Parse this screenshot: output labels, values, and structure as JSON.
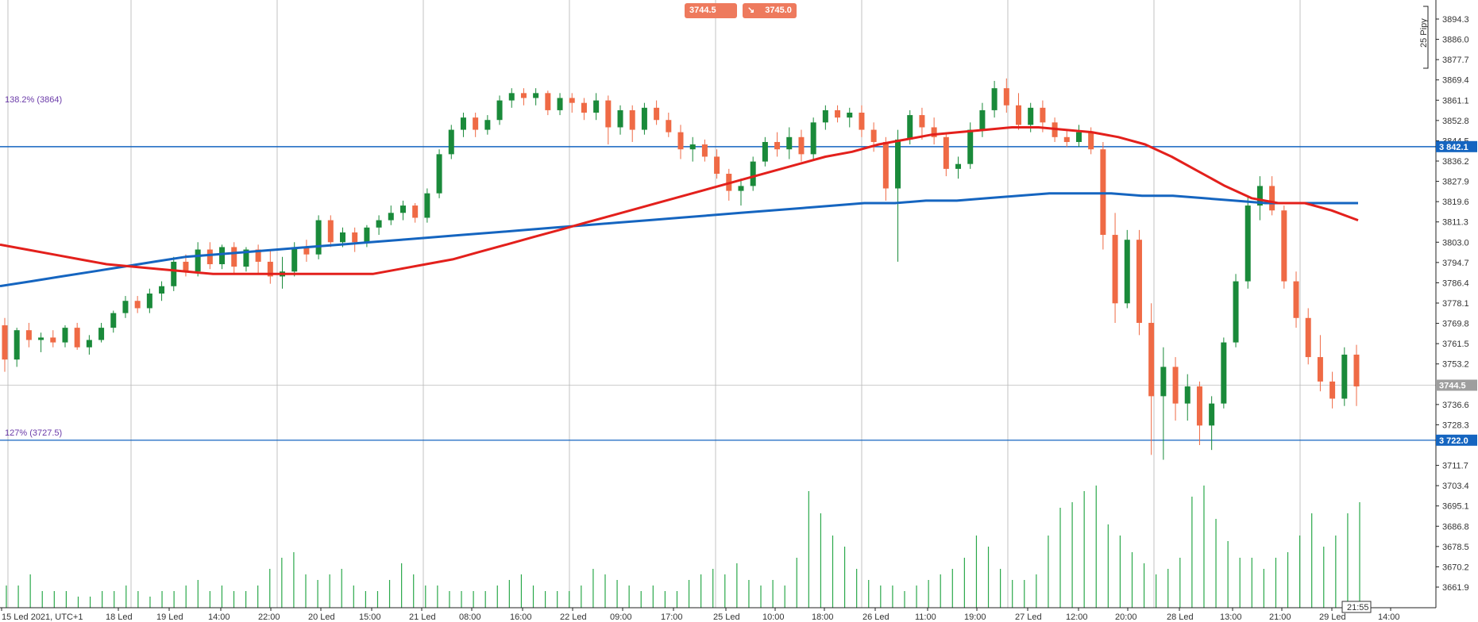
{
  "quotes": {
    "bid": "3744.5",
    "ask": "3745.0",
    "bid_arrow": "↘",
    "ask_arrow": "↘"
  },
  "volume_legend": "25 Pipy",
  "fib_labels": {
    "upper": "138.2% (3864)",
    "lower": "127% (3727.5)"
  },
  "hlines": {
    "upper": "3 842.1",
    "lower": "3 722.0",
    "current": "3744.5"
  },
  "time_badge": "21:55",
  "colors": {
    "bull": "#1a8a3a",
    "bear": "#ef6a45",
    "ma_fast": "#e3201c",
    "ma_slow": "#1565c0",
    "hline": "#1565c0",
    "volume": "#2aa84a",
    "grid": "#9a9a9a",
    "fib_text": "#6a3aa8"
  },
  "chart_data": {
    "type": "candlestick",
    "title": "",
    "xlabel": "",
    "ylabel": "",
    "ylim": [
      3657,
      3898
    ],
    "y_ticks": [
      "3894.3",
      "3886.0",
      "3877.7",
      "3869.4",
      "3861.1",
      "3852.8",
      "3844.5",
      "3836.2",
      "3827.9",
      "3819.6",
      "3811.3",
      "3803.0",
      "3794.7",
      "3786.4",
      "3778.1",
      "3769.8",
      "3761.5",
      "3753.2",
      "3744.5",
      "3736.6",
      "3728.3",
      "3722.0",
      "3711.7",
      "3703.4",
      "3695.1",
      "3686.8",
      "3678.5",
      "3670.2",
      "3661.9"
    ],
    "x_ticks": [
      "15 Led 2021, UTC+1",
      "18 Led",
      "19 Led",
      "14:00",
      "22:00",
      "20 Led",
      "15:00",
      "21 Led",
      "08:00",
      "16:00",
      "22 Led",
      "09:00",
      "17:00",
      "25 Led",
      "10:00",
      "18:00",
      "26 Led",
      "11:00",
      "19:00",
      "27 Led",
      "12:00",
      "20:00",
      "28 Led",
      "13:00",
      "21:00",
      "29 Led",
      "14:00"
    ],
    "horizontal_lines": [
      3842.1,
      3722.0
    ],
    "fib_levels": [
      {
        "label": "138.2%",
        "value": 3864
      },
      {
        "label": "127%",
        "value": 3727.5
      }
    ],
    "current_price": 3744.5,
    "series": [
      {
        "name": "",
        "type": "candles",
        "ohlc": [
          [
            3769,
            3772,
            3750,
            3755
          ],
          [
            3755,
            3768,
            3752,
            3767
          ],
          [
            3767,
            3770,
            3760,
            3763
          ],
          [
            3763,
            3766,
            3758,
            3764
          ],
          [
            3764,
            3767,
            3760,
            3762
          ],
          [
            3762,
            3769,
            3760,
            3768
          ],
          [
            3768,
            3770,
            3759,
            3760
          ],
          [
            3760,
            3765,
            3757,
            3763
          ],
          [
            3763,
            3770,
            3762,
            3768
          ],
          [
            3768,
            3775,
            3766,
            3774
          ],
          [
            3774,
            3781,
            3772,
            3779
          ],
          [
            3779,
            3781,
            3774,
            3776
          ],
          [
            3776,
            3784,
            3774,
            3782
          ],
          [
            3782,
            3787,
            3779,
            3785
          ],
          [
            3785,
            3797,
            3783,
            3795
          ],
          [
            3795,
            3798,
            3789,
            3791
          ],
          [
            3791,
            3803,
            3789,
            3800
          ],
          [
            3800,
            3803,
            3792,
            3794
          ],
          [
            3794,
            3802,
            3792,
            3801
          ],
          [
            3801,
            3803,
            3790,
            3793
          ],
          [
            3793,
            3801,
            3791,
            3800
          ],
          [
            3800,
            3802,
            3790,
            3795
          ],
          [
            3795,
            3800,
            3786,
            3789
          ],
          [
            3789,
            3797,
            3784,
            3791
          ],
          [
            3791,
            3803,
            3789,
            3801
          ],
          [
            3801,
            3804,
            3795,
            3798
          ],
          [
            3798,
            3814,
            3796,
            3812
          ],
          [
            3812,
            3814,
            3801,
            3803
          ],
          [
            3803,
            3809,
            3801,
            3807
          ],
          [
            3807,
            3809,
            3799,
            3803
          ],
          [
            3803,
            3810,
            3801,
            3809
          ],
          [
            3809,
            3814,
            3806,
            3812
          ],
          [
            3812,
            3818,
            3810,
            3815
          ],
          [
            3815,
            3820,
            3812,
            3818
          ],
          [
            3818,
            3819,
            3811,
            3813
          ],
          [
            3813,
            3825,
            3811,
            3823
          ],
          [
            3823,
            3841,
            3821,
            3839
          ],
          [
            3839,
            3851,
            3837,
            3849
          ],
          [
            3849,
            3856,
            3846,
            3854
          ],
          [
            3854,
            3856,
            3846,
            3849
          ],
          [
            3849,
            3855,
            3847,
            3853
          ],
          [
            3853,
            3863,
            3851,
            3861
          ],
          [
            3861,
            3866,
            3858,
            3864
          ],
          [
            3864,
            3866,
            3859,
            3862
          ],
          [
            3862,
            3866,
            3859,
            3864
          ],
          [
            3864,
            3865,
            3855,
            3857
          ],
          [
            3857,
            3864,
            3855,
            3862
          ],
          [
            3862,
            3864,
            3856,
            3860
          ],
          [
            3860,
            3862,
            3853,
            3856
          ],
          [
            3856,
            3864,
            3853,
            3861
          ],
          [
            3861,
            3863,
            3843,
            3850
          ],
          [
            3850,
            3859,
            3847,
            3857
          ],
          [
            3857,
            3859,
            3844,
            3849
          ],
          [
            3849,
            3860,
            3847,
            3858
          ],
          [
            3858,
            3861,
            3851,
            3853
          ],
          [
            3853,
            3856,
            3846,
            3848
          ],
          [
            3848,
            3851,
            3837,
            3841
          ],
          [
            3841,
            3846,
            3836,
            3843
          ],
          [
            3843,
            3845,
            3836,
            3838
          ],
          [
            3838,
            3841,
            3829,
            3831
          ],
          [
            3831,
            3833,
            3820,
            3824
          ],
          [
            3824,
            3829,
            3818,
            3826
          ],
          [
            3826,
            3838,
            3824,
            3836
          ],
          [
            3836,
            3846,
            3834,
            3844
          ],
          [
            3844,
            3848,
            3838,
            3841
          ],
          [
            3841,
            3850,
            3837,
            3846
          ],
          [
            3846,
            3849,
            3836,
            3839
          ],
          [
            3839,
            3854,
            3837,
            3852
          ],
          [
            3852,
            3859,
            3849,
            3857
          ],
          [
            3857,
            3859,
            3852,
            3854
          ],
          [
            3854,
            3858,
            3850,
            3856
          ],
          [
            3856,
            3859,
            3846,
            3849
          ],
          [
            3849,
            3852,
            3840,
            3844
          ],
          [
            3844,
            3846,
            3820,
            3825
          ],
          [
            3825,
            3849,
            3795,
            3845
          ],
          [
            3845,
            3857,
            3843,
            3855
          ],
          [
            3855,
            3858,
            3845,
            3850
          ],
          [
            3850,
            3854,
            3843,
            3846
          ],
          [
            3846,
            3848,
            3830,
            3833
          ],
          [
            3833,
            3838,
            3829,
            3835
          ],
          [
            3835,
            3852,
            3833,
            3849
          ],
          [
            3849,
            3860,
            3846,
            3857
          ],
          [
            3857,
            3869,
            3854,
            3866
          ],
          [
            3866,
            3870,
            3856,
            3859
          ],
          [
            3859,
            3864,
            3849,
            3851
          ],
          [
            3851,
            3860,
            3848,
            3858
          ],
          [
            3858,
            3861,
            3848,
            3852
          ],
          [
            3852,
            3854,
            3844,
            3846
          ],
          [
            3846,
            3849,
            3842,
            3844
          ],
          [
            3844,
            3851,
            3842,
            3848
          ],
          [
            3848,
            3850,
            3839,
            3841
          ],
          [
            3841,
            3844,
            3800,
            3806
          ],
          [
            3806,
            3815,
            3770,
            3778
          ],
          [
            3778,
            3808,
            3776,
            3804
          ],
          [
            3804,
            3808,
            3765,
            3770
          ],
          [
            3770,
            3778,
            3716,
            3740
          ],
          [
            3740,
            3760,
            3714,
            3752
          ],
          [
            3752,
            3756,
            3730,
            3737
          ],
          [
            3737,
            3749,
            3730,
            3744
          ],
          [
            3744,
            3746,
            3720,
            3728
          ],
          [
            3728,
            3740,
            3718,
            3737
          ],
          [
            3737,
            3764,
            3735,
            3762
          ],
          [
            3762,
            3790,
            3760,
            3787
          ],
          [
            3787,
            3822,
            3784,
            3818
          ],
          [
            3818,
            3830,
            3812,
            3826
          ],
          [
            3826,
            3830,
            3814,
            3816
          ],
          [
            3816,
            3818,
            3784,
            3787
          ],
          [
            3787,
            3791,
            3768,
            3772
          ],
          [
            3772,
            3776,
            3753,
            3756
          ],
          [
            3756,
            3765,
            3742,
            3746
          ],
          [
            3746,
            3750,
            3735,
            3739
          ],
          [
            3739,
            3760,
            3736,
            3757
          ],
          [
            3757,
            3761,
            3736,
            3744
          ]
        ]
      },
      {
        "name": "",
        "type": "line",
        "role": "fast-ma",
        "values": [
          3802,
          3800,
          3798,
          3796,
          3794,
          3793,
          3792,
          3791,
          3790,
          3790,
          3790,
          3790,
          3790,
          3790,
          3790,
          3792,
          3794,
          3796,
          3799,
          3802,
          3805,
          3808,
          3811,
          3814,
          3817,
          3820,
          3823,
          3826,
          3829,
          3832,
          3835,
          3838,
          3840,
          3843,
          3845,
          3847,
          3848,
          3849,
          3850,
          3850,
          3849,
          3848,
          3846,
          3843,
          3838,
          3832,
          3826,
          3821,
          3819,
          3819,
          3816,
          3812
        ]
      },
      {
        "name": "",
        "type": "line",
        "role": "slow-ma",
        "values": [
          3785,
          3787,
          3789,
          3791,
          3793,
          3795,
          3797,
          3798,
          3799,
          3800,
          3801,
          3802,
          3803,
          3804,
          3805,
          3806,
          3807,
          3808,
          3809,
          3810,
          3811,
          3812,
          3813,
          3814,
          3815,
          3816,
          3817,
          3818,
          3819,
          3819,
          3820,
          3820,
          3821,
          3822,
          3823,
          3823,
          3823,
          3822,
          3822,
          3821,
          3820,
          3819,
          3819,
          3819,
          3819
        ]
      },
      {
        "name": "",
        "type": "volume",
        "values": [
          8,
          8,
          12,
          6,
          6,
          6,
          4,
          4,
          6,
          6,
          8,
          6,
          4,
          6,
          6,
          8,
          10,
          6,
          8,
          6,
          6,
          8,
          14,
          18,
          20,
          12,
          10,
          12,
          14,
          8,
          6,
          6,
          10,
          16,
          12,
          8,
          8,
          6,
          6,
          6,
          6,
          8,
          10,
          12,
          8,
          6,
          6,
          6,
          8,
          14,
          12,
          10,
          8,
          6,
          8,
          6,
          6,
          10,
          12,
          14,
          12,
          16,
          10,
          8,
          10,
          8,
          18,
          42,
          34,
          26,
          22,
          14,
          10,
          8,
          8,
          6,
          8,
          10,
          12,
          14,
          18,
          26,
          22,
          14,
          10,
          10,
          12,
          26,
          36,
          38,
          42,
          44,
          30,
          26,
          20,
          16,
          12,
          14,
          18,
          40,
          44,
          32,
          24,
          18,
          18,
          14,
          18,
          20,
          26,
          34,
          22,
          26,
          34,
          38
        ]
      }
    ]
  }
}
